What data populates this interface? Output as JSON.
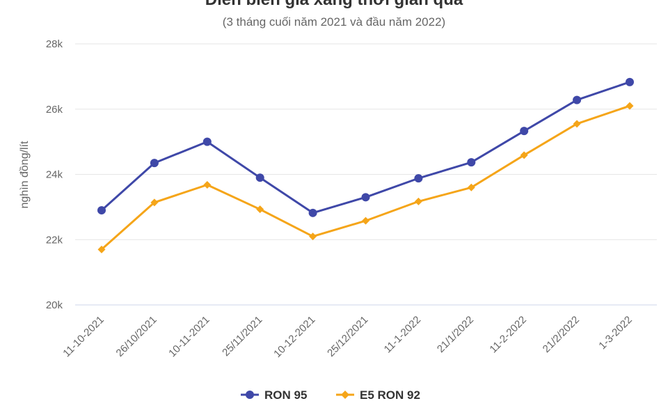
{
  "chart_data": {
    "type": "line",
    "title": "Diễn biến giá xăng thời gian qua",
    "subtitle": "(3 tháng cuối năm 2021 và đầu năm 2022)",
    "ylabel": "nghìn đồng/lít",
    "xlabel": "",
    "ylim": [
      20000,
      28000
    ],
    "yticks": [
      {
        "value": 20000,
        "label": "20k"
      },
      {
        "value": 22000,
        "label": "22k"
      },
      {
        "value": 24000,
        "label": "24k"
      },
      {
        "value": 26000,
        "label": "26k"
      },
      {
        "value": 28000,
        "label": "28k"
      }
    ],
    "categories": [
      "11-10-2021",
      "26/10/2021",
      "10-11-2021",
      "25/11/2021",
      "10-12-2021",
      "25/12/2021",
      "11-1-2022",
      "21/1/2022",
      "11-2-2022",
      "21/2/2022",
      "1-3-2022"
    ],
    "series": [
      {
        "name": "RON 95",
        "color": "#3f48a8",
        "marker": "circle",
        "values": [
          22900,
          24350,
          25000,
          23900,
          22820,
          23300,
          23880,
          24370,
          25330,
          26280,
          26830
        ]
      },
      {
        "name": "E5 RON 92",
        "color": "#f5a519",
        "marker": "diamond",
        "values": [
          21700,
          23140,
          23680,
          22930,
          22100,
          22580,
          23170,
          23600,
          24590,
          25550,
          26100
        ]
      }
    ],
    "grid": true,
    "legend": "bottom-center"
  }
}
